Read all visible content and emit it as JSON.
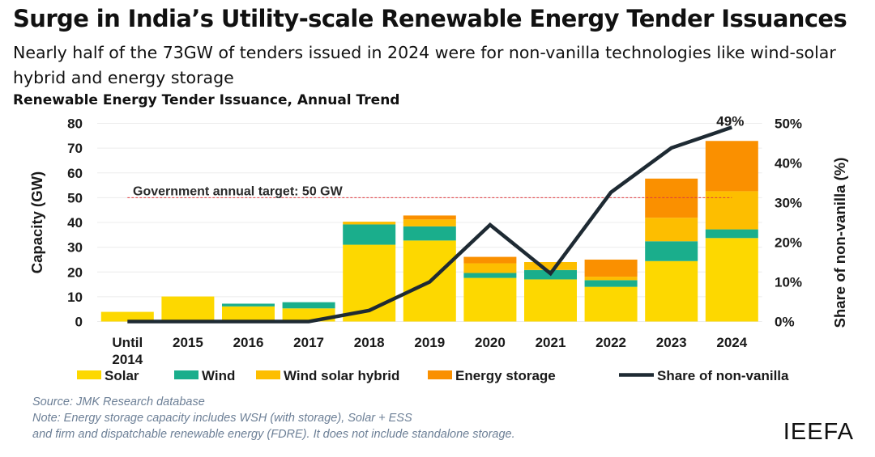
{
  "title": "Surge in India’s Utility-scale Renewable Energy Tender Issuances",
  "subtitle": "Nearly half of the 73GW of tenders issued in 2024 were for non-vanilla technologies like wind-solar hybrid and energy storage",
  "chart_title": "Renewable Energy Tender Issuance, Annual Trend",
  "footer": {
    "source": "Source: JMK Research database",
    "note_line1": "Note: Energy storage capacity includes WSH (with storage), Solar + ESS",
    "note_line2": "and firm and dispatchable renewable energy (FDRE). It does not include standalone storage."
  },
  "brand": "IEEFA",
  "chart_data": {
    "type": "bar",
    "stacked": true,
    "categories": [
      "Until 2014",
      "2015",
      "2016",
      "2017",
      "2018",
      "2019",
      "2020",
      "2021",
      "2022",
      "2023",
      "2024"
    ],
    "series": [
      {
        "name": "Solar",
        "color": "#FDD800",
        "values": [
          3.9,
          10.1,
          6.1,
          5.3,
          31.0,
          32.7,
          17.6,
          17.0,
          14.0,
          24.4,
          33.7
        ]
      },
      {
        "name": "Wind",
        "color": "#1AAE8C",
        "values": [
          0,
          0,
          1.1,
          2.5,
          8.2,
          5.7,
          2.0,
          3.8,
          2.7,
          8.0,
          3.5
        ]
      },
      {
        "name": "Wind solar hybrid",
        "color": "#FDBE00",
        "values": [
          0,
          0,
          0,
          0,
          1.1,
          2.8,
          3.9,
          3.2,
          1.4,
          9.5,
          15.4
        ]
      },
      {
        "name": "Energy storage",
        "color": "#FA9000",
        "values": [
          0,
          0,
          0,
          0,
          0,
          1.6,
          2.6,
          0,
          6.9,
          15.8,
          20.3
        ]
      }
    ],
    "line_series": {
      "name": "Share of non-vanilla",
      "color": "#1E2A33",
      "axis": "right",
      "values": [
        0,
        0,
        0,
        0,
        2.8,
        10.0,
        24.4,
        12.1,
        32.6,
        43.8,
        49.0
      ]
    },
    "line_label": "49%",
    "ylabel": "Capacity (GW)",
    "ylim": [
      0,
      80
    ],
    "yticks": [
      "0",
      "10",
      "20",
      "30",
      "40",
      "50",
      "60",
      "70",
      "80"
    ],
    "y2label": "Share of non-vanilla (%)",
    "y2lim": [
      0,
      50
    ],
    "y2ticks": [
      "0%",
      "10%",
      "20%",
      "30%",
      "40%",
      "50%"
    ],
    "reference_line": {
      "value": 50,
      "label": "Government annual target: 50 GW",
      "color": "#E0393E",
      "style": "dashed"
    },
    "grid": true,
    "legend_position": "bottom"
  }
}
